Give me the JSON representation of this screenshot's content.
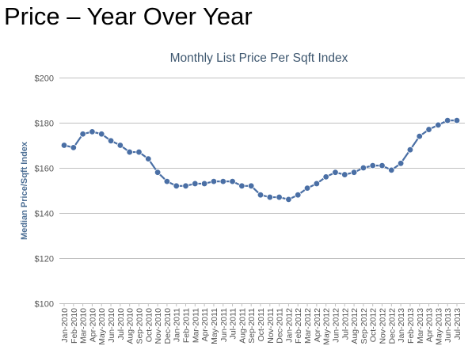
{
  "slide": {
    "title": "Price – Year Over Year"
  },
  "colors": {
    "series": "#4a6fa5",
    "title_text": "#3e576f",
    "axis_text": "#555555",
    "grid": "#c0c0c0"
  },
  "chart_data": {
    "type": "line",
    "title": "Monthly List Price Per Sqft Index",
    "xlabel": "",
    "ylabel": "Median Price/Sqft Index",
    "ylim": [
      100,
      200
    ],
    "yticks": [
      100,
      120,
      140,
      160,
      180,
      200
    ],
    "ytick_labels": [
      "$100",
      "$120",
      "$140",
      "$160",
      "$180",
      "$200"
    ],
    "grid": true,
    "legend": "none",
    "categories": [
      "Jan-2010",
      "Feb-2010",
      "Mar-2010",
      "Apr-2010",
      "May-2010",
      "Jun-2010",
      "Jul-2010",
      "Aug-2010",
      "Sep-2010",
      "Oct-2010",
      "Nov-2010",
      "Dec-2010",
      "Jan-2011",
      "Feb-2011",
      "Mar-2011",
      "Apr-2011",
      "May-2011",
      "Jun-2011",
      "Jul-2011",
      "Aug-2011",
      "Sep-2011",
      "Oct-2011",
      "Nov-2011",
      "Dec-2011",
      "Jan-2012",
      "Feb-2012",
      "Mar-2012",
      "Apr-2012",
      "May-2012",
      "Jun-2012",
      "Jul-2012",
      "Aug-2012",
      "Sep-2012",
      "Oct-2012",
      "Nov-2012",
      "Dec-2012",
      "Jan-2013",
      "Feb-2013",
      "Mar-2013",
      "Apr-2013",
      "May-2013",
      "Jun-2013",
      "Jul-2013"
    ],
    "series": [
      {
        "values": [
          170,
          169,
          175,
          176,
          175,
          172,
          170,
          167,
          167,
          164,
          158,
          154,
          152,
          152,
          153,
          153,
          154,
          154,
          154,
          152,
          152,
          148,
          147,
          147,
          146,
          148,
          151,
          153,
          156,
          158,
          157,
          158,
          160,
          161,
          161,
          159,
          162,
          168,
          174,
          177,
          179,
          181,
          181
        ]
      }
    ]
  }
}
